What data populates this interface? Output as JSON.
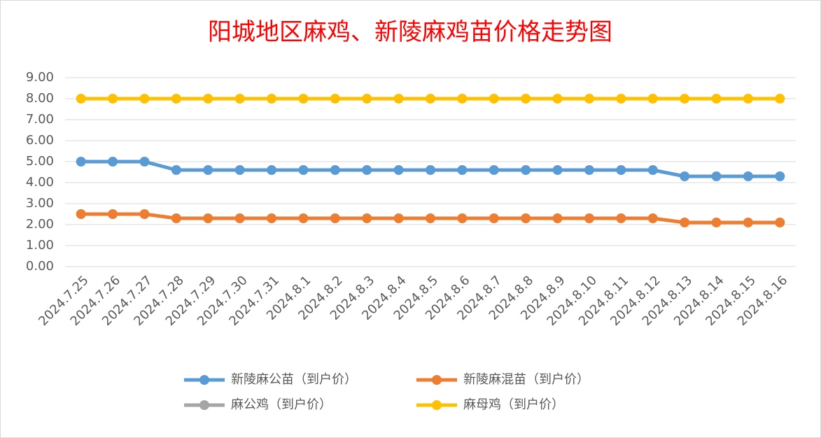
{
  "chart_data": {
    "type": "line",
    "title": "阳城地区麻鸡、新陵麻鸡苗价格走势图",
    "categories": [
      "2024.7.25",
      "2024.7.26",
      "2024.7.27",
      "2024.7.28",
      "2024.7.29",
      "2024.7.30",
      "2024.7.31",
      "2024.8.1",
      "2024.8.2",
      "2024.8.3",
      "2024.8.4",
      "2024.8.5",
      "2024.8.6",
      "2024.8.7",
      "2024.8.8",
      "2024.8.9",
      "2024.8.10",
      "2024.8.11",
      "2024.8.12",
      "2024.8.13",
      "2024.8.14",
      "2024.8.15",
      "2024.8.16"
    ],
    "series": [
      {
        "name": "新陵麻公苗（到户价）",
        "color": "#5b9bd5",
        "values": [
          5.0,
          5.0,
          5.0,
          4.6,
          4.6,
          4.6,
          4.6,
          4.6,
          4.6,
          4.6,
          4.6,
          4.6,
          4.6,
          4.6,
          4.6,
          4.6,
          4.6,
          4.6,
          4.6,
          4.3,
          4.3,
          4.3,
          4.3
        ]
      },
      {
        "name": "新陵麻混苗（到户价）",
        "color": "#ed7d31",
        "values": [
          2.5,
          2.5,
          2.5,
          2.3,
          2.3,
          2.3,
          2.3,
          2.3,
          2.3,
          2.3,
          2.3,
          2.3,
          2.3,
          2.3,
          2.3,
          2.3,
          2.3,
          2.3,
          2.3,
          2.1,
          2.1,
          2.1,
          2.1
        ]
      },
      {
        "name": "麻公鸡（到户价）",
        "color": "#a5a5a5",
        "values": [
          null,
          null,
          null,
          null,
          null,
          null,
          null,
          null,
          null,
          null,
          null,
          null,
          null,
          null,
          null,
          null,
          null,
          null,
          null,
          null,
          null,
          null,
          null
        ]
      },
      {
        "name": "麻母鸡（到户价）",
        "color": "#ffc000",
        "values": [
          8.0,
          8.0,
          8.0,
          8.0,
          8.0,
          8.0,
          8.0,
          8.0,
          8.0,
          8.0,
          8.0,
          8.0,
          8.0,
          8.0,
          8.0,
          8.0,
          8.0,
          8.0,
          8.0,
          8.0,
          8.0,
          8.0,
          8.0
        ]
      }
    ],
    "ylim": [
      0,
      9
    ],
    "yticks": [
      {
        "value": 0,
        "label": "0.00"
      },
      {
        "value": 1,
        "label": "1.00"
      },
      {
        "value": 2,
        "label": "2.00"
      },
      {
        "value": 3,
        "label": "3.00"
      },
      {
        "value": 4,
        "label": "4.00"
      },
      {
        "value": 5,
        "label": "5.00"
      },
      {
        "value": 6,
        "label": "6.00"
      },
      {
        "value": 7,
        "label": "7.00"
      },
      {
        "value": 8,
        "label": "8.00"
      },
      {
        "value": 9,
        "label": "9.00"
      }
    ],
    "grid": true,
    "legend": "bottom"
  }
}
